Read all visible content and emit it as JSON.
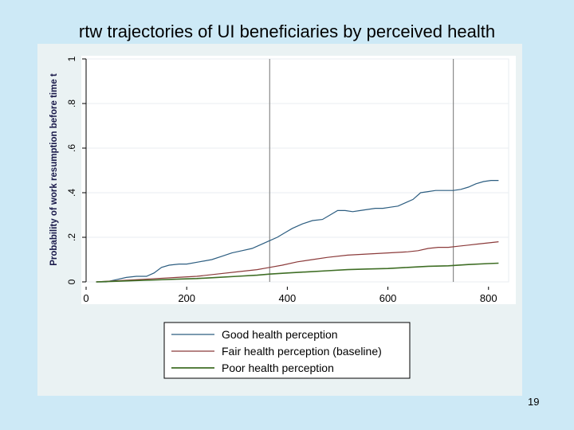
{
  "slide": {
    "title": "rtw trajectories of UI beneficiaries by perceived health",
    "page_number": "19"
  },
  "chart_data": {
    "type": "line",
    "title": "rtw trajectories of UI beneficiaries by perceived health",
    "xlabel": "",
    "ylabel": "Probability of work resumption before time t",
    "xlim": [
      0,
      840
    ],
    "ylim": [
      0,
      1
    ],
    "x_ticks": [
      0,
      200,
      400,
      600,
      800
    ],
    "y_ticks": [
      0,
      0.2,
      0.4,
      0.6,
      0.8,
      1
    ],
    "y_tick_labels": [
      "0",
      ".2",
      ".4",
      ".6",
      ".8",
      "1"
    ],
    "vertical_reference_lines": [
      365,
      730
    ],
    "grid": true,
    "legend_position": "bottom",
    "series": [
      {
        "name": "Good health perception",
        "color": "#2c5d80",
        "x": [
          20,
          40,
          60,
          80,
          100,
          120,
          135,
          150,
          165,
          185,
          200,
          225,
          250,
          270,
          290,
          310,
          330,
          350,
          365,
          380,
          395,
          410,
          430,
          450,
          470,
          485,
          500,
          515,
          530,
          545,
          560,
          575,
          590,
          605,
          620,
          635,
          650,
          665,
          680,
          695,
          710,
          730,
          745,
          760,
          775,
          790,
          805,
          820
        ],
        "y": [
          0.0,
          0.0,
          0.01,
          0.02,
          0.025,
          0.025,
          0.04,
          0.065,
          0.075,
          0.08,
          0.08,
          0.09,
          0.1,
          0.115,
          0.13,
          0.14,
          0.15,
          0.17,
          0.185,
          0.2,
          0.22,
          0.24,
          0.26,
          0.275,
          0.28,
          0.3,
          0.32,
          0.32,
          0.315,
          0.32,
          0.325,
          0.33,
          0.33,
          0.335,
          0.34,
          0.355,
          0.37,
          0.4,
          0.405,
          0.41,
          0.41,
          0.41,
          0.415,
          0.425,
          0.44,
          0.45,
          0.455,
          0.455
        ]
      },
      {
        "name": "Fair health perception (baseline)",
        "color": "#8b3a3a",
        "x": [
          20,
          60,
          100,
          140,
          180,
          220,
          260,
          300,
          340,
          365,
          390,
          420,
          450,
          480,
          520,
          560,
          600,
          640,
          660,
          680,
          700,
          720,
          740,
          760,
          780,
          800,
          820
        ],
        "y": [
          0.0,
          0.005,
          0.01,
          0.015,
          0.02,
          0.025,
          0.035,
          0.045,
          0.055,
          0.065,
          0.075,
          0.09,
          0.1,
          0.11,
          0.12,
          0.125,
          0.13,
          0.135,
          0.14,
          0.15,
          0.155,
          0.155,
          0.16,
          0.165,
          0.17,
          0.175,
          0.18
        ]
      },
      {
        "name": "Poor health perception",
        "color": "#3f6e25",
        "x": [
          20,
          60,
          100,
          140,
          180,
          220,
          260,
          300,
          340,
          365,
          400,
          440,
          480,
          520,
          560,
          600,
          640,
          680,
          720,
          760,
          800,
          820
        ],
        "y": [
          0.0,
          0.003,
          0.006,
          0.009,
          0.012,
          0.015,
          0.02,
          0.025,
          0.03,
          0.035,
          0.04,
          0.045,
          0.05,
          0.055,
          0.058,
          0.06,
          0.065,
          0.07,
          0.072,
          0.078,
          0.082,
          0.084
        ]
      }
    ]
  }
}
